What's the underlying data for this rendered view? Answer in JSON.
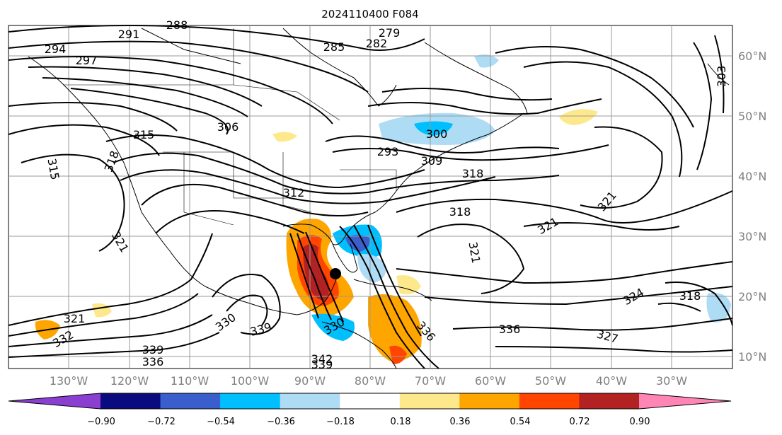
{
  "title": "2024110400 F084",
  "map": {
    "lon_labels": [
      "130°W",
      "120°W",
      "110°W",
      "100°W",
      "90°W",
      "80°W",
      "70°W",
      "60°W",
      "50°W",
      "40°W",
      "30°W"
    ],
    "lat_labels": [
      "60°N",
      "50°N",
      "40°N",
      "30°N",
      "20°N",
      "10°N"
    ],
    "contour_labels": [
      "291",
      "288",
      "294",
      "297",
      "285",
      "282",
      "279",
      "303",
      "306",
      "300",
      "315",
      "318",
      "315",
      "293",
      "309",
      "318",
      "312",
      "318",
      "321",
      "321",
      "321",
      "321",
      "324",
      "318",
      "327",
      "336",
      "336",
      "339",
      "339",
      "336",
      "342",
      "339",
      "330",
      "321",
      "332",
      "330"
    ],
    "storm_marker": "black-dot"
  },
  "colorbar": {
    "tick_labels": [
      "−0.90",
      "−0.72",
      "−0.54",
      "−0.36",
      "−0.18",
      "0.18",
      "0.36",
      "0.54",
      "0.72",
      "0.90"
    ],
    "colors": [
      "#8b3fd1",
      "#0b0b80",
      "#3a5fcd",
      "#00bfff",
      "#aedcf5",
      "#ffffff",
      "#fde98c",
      "#ffa500",
      "#ff4500",
      "#b22222",
      "#ff85b5"
    ]
  }
}
